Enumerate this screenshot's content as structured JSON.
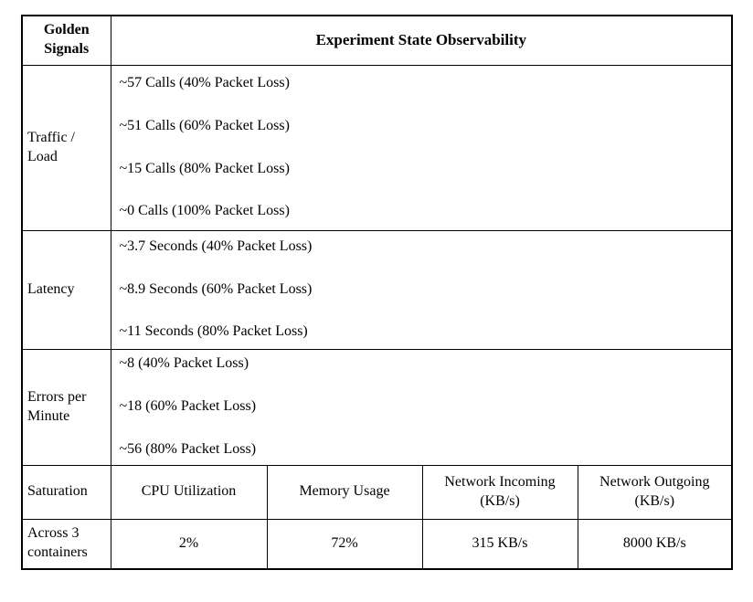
{
  "colors": {
    "text": "#000000",
    "border": "#000000",
    "background": "#ffffff"
  },
  "header": {
    "golden_signals": "Golden Signals",
    "observability": "Experiment State Observability"
  },
  "signals": [
    {
      "label": "Traffic / Load",
      "metrics": [
        "~57 Calls (40% Packet Loss)",
        "~51 Calls (60% Packet Loss)",
        "~15 Calls (80% Packet Loss)",
        "~0 Calls (100% Packet Loss)"
      ]
    },
    {
      "label": "Latency",
      "metrics": [
        "~3.7 Seconds (40% Packet Loss)",
        "~8.9 Seconds (60% Packet Loss)",
        "~11 Seconds (80% Packet Loss)"
      ]
    },
    {
      "label": "Errors per Minute",
      "metrics": [
        "~8 (40% Packet Loss)",
        "~18 (60% Packet Loss)",
        "~56 (80% Packet Loss)"
      ]
    }
  ],
  "saturation": {
    "label": "Saturation",
    "columns": [
      "CPU Utilization",
      "Memory Usage",
      "Network Incoming (KB/s)",
      "Network Outgoing (KB/s)"
    ],
    "scope": "Across 3 containers",
    "values": [
      "2%",
      "72%",
      "315 KB/s",
      "8000 KB/s"
    ]
  }
}
